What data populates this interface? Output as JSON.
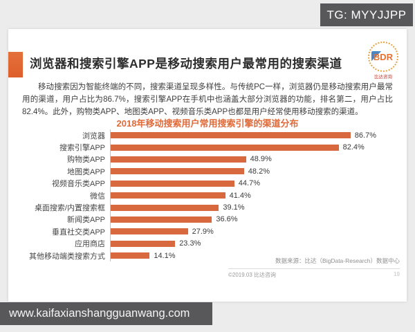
{
  "overlay": {
    "badge_text": "TG: MYYJJPP",
    "watermark_url": "www.kaifaxianshangguanwang.com"
  },
  "slide": {
    "title": "浏览器和搜索引擎APP是移动搜索用户最常用的搜索渠道",
    "paragraph": "移动搜索因为智能终端的不同，搜索渠道呈现多样性。与传统PC一样，浏览器仍是移动搜索用户最常用的渠道，用户占比为86.7%，搜索引擎APP在手机中也涵盖大部分浏览器的功能，排名第二，用户占比82.4%。此外，购物类APP、地图类APP、视频音乐类APP也都是用户经常使用移动搜索的渠道。",
    "logo": {
      "text": "BDR",
      "caption": "比达咨询"
    },
    "footer": {
      "source": "数据来源：比达（BigData-Research）数据中心",
      "copyright": "©2019.03 比达咨询",
      "page": "19"
    }
  },
  "chart_data": {
    "type": "bar",
    "orientation": "horizontal",
    "title": "2018年移动搜索用户常用搜索引擎的渠道分布",
    "categories": [
      "浏览器",
      "搜索引擎APP",
      "购物类APP",
      "地图类APP",
      "视频音乐类APP",
      "微信",
      "桌面搜索/内置搜索框",
      "新闻类APP",
      "垂直社交类APP",
      "应用商店",
      "其他移动端类搜索方式"
    ],
    "values": [
      86.7,
      82.4,
      48.9,
      48.2,
      44.7,
      41.4,
      39.1,
      36.6,
      27.9,
      23.3,
      14.1
    ],
    "value_labels": [
      "86.7%",
      "82.4%",
      "48.9%",
      "48.2%",
      "44.7%",
      "41.4%",
      "39.1%",
      "36.6%",
      "27.9%",
      "23.3%",
      "14.1%"
    ],
    "xlim": [
      0,
      100
    ],
    "grid": false,
    "legend": false,
    "bar_color": "#d8693e"
  },
  "colors": {
    "accent_orange": "#e06a35",
    "bar_orange": "#d8693e",
    "chart_title_orange": "#e06a38",
    "badge_gray": "#58585a",
    "page_bg": "#ececec"
  }
}
